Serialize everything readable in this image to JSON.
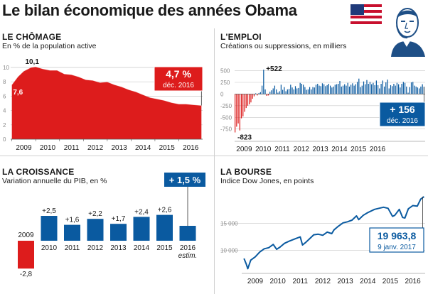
{
  "header": {
    "title": "Le bilan économique des années Obama"
  },
  "colors": {
    "red": "#dd1c1c",
    "blue": "#0a5aa0",
    "grid": "#c8c8c8"
  },
  "chart_data": [
    {
      "id": "chomage",
      "type": "area",
      "title": "LE CHÔMAGE",
      "subtitle": "En % de la population active",
      "ylabel": "",
      "ylim": [
        0,
        10
      ],
      "grid": true,
      "yticks": [
        "10",
        "8",
        "6",
        "4",
        "2",
        "0"
      ],
      "xticks": [
        "2009",
        "2010",
        "2011",
        "2012",
        "2013",
        "2014",
        "2015",
        "2016"
      ],
      "x": [
        2009.0,
        2009.25,
        2009.5,
        2009.8,
        2010.0,
        2010.3,
        2010.6,
        2010.9,
        2011.2,
        2011.5,
        2011.8,
        2012.1,
        2012.4,
        2012.7,
        2013.0,
        2013.3,
        2013.6,
        2013.9,
        2014.2,
        2014.5,
        2014.8,
        2015.1,
        2015.4,
        2015.7,
        2016.0,
        2016.3,
        2016.6,
        2016.95
      ],
      "values": [
        7.6,
        8.7,
        9.5,
        10.0,
        10.1,
        9.8,
        9.6,
        9.6,
        9.1,
        9.0,
        8.7,
        8.3,
        8.2,
        7.9,
        8.0,
        7.6,
        7.3,
        6.9,
        6.6,
        6.2,
        5.8,
        5.6,
        5.4,
        5.1,
        4.9,
        4.9,
        4.8,
        4.7
      ],
      "annotations": [
        "10,1",
        "7,6"
      ],
      "callout": {
        "value": "4,7 %",
        "date": "déc. 2016"
      }
    },
    {
      "id": "emploi",
      "type": "bar",
      "title": "L'EMPLOI",
      "subtitle": "Créations ou suppressions, en milliers",
      "ylim": [
        -800,
        600
      ],
      "grid": true,
      "yticks": [
        "500",
        "250",
        "0",
        "-250",
        "-500",
        "-750"
      ],
      "xticks": [
        "2009",
        "2010",
        "2011",
        "2012",
        "2013",
        "2014",
        "2015",
        "2016"
      ],
      "values": [
        -823,
        -700,
        -630,
        -780,
        -520,
        -480,
        -380,
        -300,
        -250,
        -220,
        -180,
        -100,
        -50,
        15,
        -30,
        20,
        40,
        180,
        522,
        100,
        -40,
        -30,
        50,
        80,
        120,
        180,
        100,
        30,
        60,
        200,
        90,
        150,
        60,
        100,
        110,
        200,
        140,
        100,
        170,
        120,
        130,
        240,
        220,
        200,
        150,
        90,
        100,
        150,
        100,
        150,
        140,
        200,
        220,
        180,
        170,
        230,
        210,
        170,
        190,
        220,
        180,
        140,
        160,
        200,
        210,
        220,
        280,
        160,
        180,
        210,
        180,
        240,
        160,
        200,
        230,
        180,
        210,
        260,
        330,
        150,
        180,
        270,
        210,
        300,
        220,
        260,
        210,
        240,
        190,
        290,
        190,
        120,
        220,
        290,
        160,
        250,
        310,
        120,
        190,
        170,
        220,
        180,
        240,
        210,
        140,
        220,
        260,
        240,
        160,
        30,
        150,
        250,
        260,
        180,
        160,
        140,
        120,
        160,
        210,
        156
      ],
      "annotations": [
        "+522",
        "-823"
      ],
      "callout": {
        "value": "+ 156",
        "date": "déc. 2016"
      }
    },
    {
      "id": "croissance",
      "type": "bar",
      "title": "LA CROISSANCE",
      "subtitle": "Variation annuelle du PIB, en %",
      "categories": [
        "2009",
        "2010",
        "2011",
        "2012",
        "2013",
        "2014",
        "2015",
        "2016"
      ],
      "values": [
        -2.8,
        2.5,
        1.6,
        2.2,
        1.7,
        2.4,
        2.6,
        1.5
      ],
      "value_labels": [
        "-2,8",
        "+2,5",
        "+1,6",
        "+2,2",
        "+1,7",
        "+2,4",
        "+2,6",
        "+ 1,5 %"
      ],
      "note": "estim.",
      "ylim": [
        -3,
        3
      ]
    },
    {
      "id": "bourse",
      "type": "line",
      "title": "LA BOURSE",
      "subtitle": "Indice Dow Jones, en points",
      "ylim": [
        6000,
        21000
      ],
      "grid": true,
      "yticks": [
        "15 000",
        "10 000"
      ],
      "xticks": [
        "2009",
        "2010",
        "2011",
        "2012",
        "2013",
        "2014",
        "2015",
        "2016"
      ],
      "x": [
        2009.0,
        2009.1,
        2009.17,
        2009.3,
        2009.5,
        2009.7,
        2009.9,
        2010.1,
        2010.3,
        2010.45,
        2010.6,
        2010.8,
        2011.0,
        2011.3,
        2011.5,
        2011.6,
        2011.75,
        2011.9,
        2012.1,
        2012.3,
        2012.5,
        2012.7,
        2012.9,
        2013.0,
        2013.2,
        2013.4,
        2013.6,
        2013.8,
        2014.0,
        2014.1,
        2014.3,
        2014.5,
        2014.8,
        2015.0,
        2015.2,
        2015.4,
        2015.6,
        2015.7,
        2015.9,
        2016.05,
        2016.15,
        2016.3,
        2016.5,
        2016.7,
        2016.85,
        2017.0
      ],
      "values": [
        8500,
        7500,
        6600,
        8200,
        8800,
        9700,
        10300,
        10500,
        11100,
        10200,
        10600,
        11300,
        11700,
        12200,
        12500,
        11000,
        11500,
        12100,
        12900,
        13000,
        12800,
        13400,
        13100,
        13800,
        14500,
        15100,
        15300,
        15600,
        16400,
        15700,
        16500,
        17000,
        17600,
        17800,
        18000,
        17800,
        16300,
        16500,
        17600,
        16100,
        16000,
        17700,
        18300,
        18200,
        19500,
        19964
      ],
      "callout": {
        "value": "19 963,8",
        "date": "9 janv. 2017"
      }
    }
  ]
}
